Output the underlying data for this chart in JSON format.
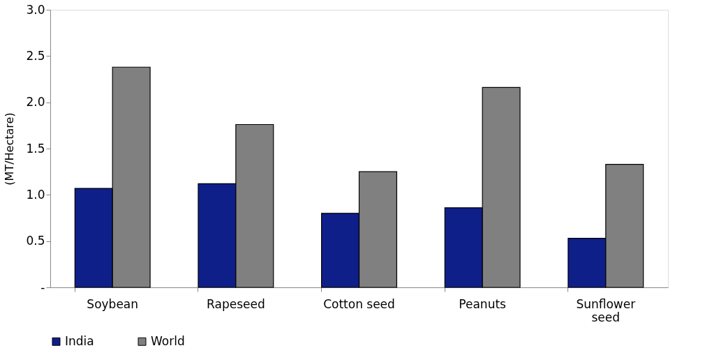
{
  "chart_data": {
    "type": "bar",
    "ylabel": "(MT/Hectare)",
    "categories": [
      "Soybean",
      "Rapeseed",
      "Cotton seed",
      "Peanuts",
      "Sunflower seed"
    ],
    "series": [
      {
        "name": "India",
        "color": "#0f1f8a",
        "values": [
          1.07,
          1.12,
          0.8,
          0.86,
          0.53
        ]
      },
      {
        "name": "World",
        "color": "#808080",
        "values": [
          2.38,
          1.76,
          1.25,
          2.16,
          1.33
        ]
      }
    ],
    "ylim": [
      0,
      3
    ],
    "yticks": [
      {
        "value": 0,
        "label": "-"
      },
      {
        "value": 0.5,
        "label": "0.5"
      },
      {
        "value": 1,
        "label": "1.0"
      },
      {
        "value": 1.5,
        "label": "1.5"
      },
      {
        "value": 2,
        "label": "2.0"
      },
      {
        "value": 2.5,
        "label": "2.5"
      },
      {
        "value": 3,
        "label": "3.0"
      }
    ],
    "grid": false,
    "legend": "bottom"
  }
}
